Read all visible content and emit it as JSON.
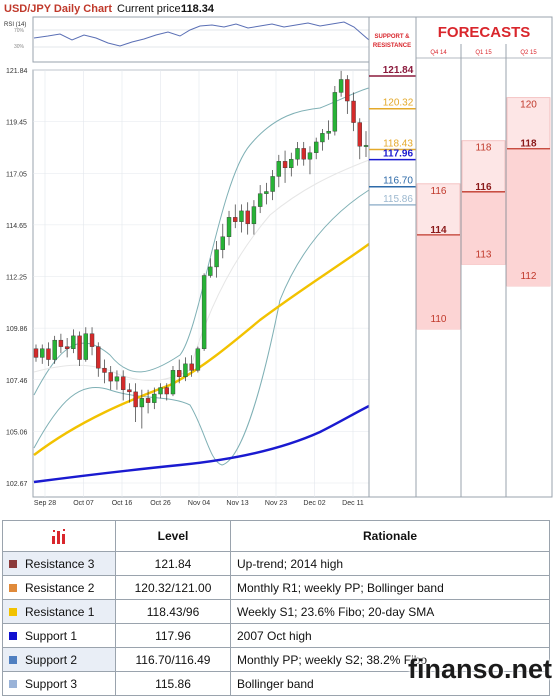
{
  "header": {
    "title": "USD/JPY Daily Chart",
    "price_label": "Current price:",
    "price_value": "118.34"
  },
  "rsi": {
    "label": "RSI (14)",
    "levels": [
      "70%",
      "30%"
    ]
  },
  "chart_data": {
    "type": "candlestick",
    "ylim": [
      102.67,
      121.84
    ],
    "y_ticks": [
      "121.84",
      "119.45",
      "117.05",
      "114.65",
      "112.25",
      "109.86",
      "107.46",
      "105.06",
      "102.67"
    ],
    "x_ticks": [
      "Sep 28",
      "Oct 07",
      "Oct 16",
      "Oct 26",
      "Nov 04",
      "Nov 13",
      "Nov 23",
      "Dec 02",
      "Dec 11"
    ],
    "candles": [
      [
        108.9,
        108.5,
        109.1,
        108.3
      ],
      [
        108.5,
        108.9,
        109.1,
        108.2
      ],
      [
        108.9,
        108.4,
        109.2,
        108.1
      ],
      [
        108.4,
        109.3,
        109.5,
        108.2
      ],
      [
        109.3,
        109.0,
        109.6,
        108.7
      ],
      [
        109.0,
        108.9,
        109.4,
        108.5
      ],
      [
        108.9,
        109.5,
        109.8,
        108.7
      ],
      [
        109.5,
        108.4,
        109.7,
        108.1
      ],
      [
        108.4,
        109.6,
        109.9,
        108.3
      ],
      [
        109.6,
        109.0,
        109.9,
        108.6
      ],
      [
        109.0,
        108.0,
        109.2,
        107.6
      ],
      [
        108.0,
        107.8,
        108.4,
        107.3
      ],
      [
        107.8,
        107.4,
        108.1,
        107.0
      ],
      [
        107.4,
        107.6,
        107.9,
        107.0
      ],
      [
        107.6,
        107.0,
        107.9,
        106.5
      ],
      [
        107.0,
        106.9,
        107.3,
        106.4
      ],
      [
        106.9,
        106.2,
        107.3,
        105.5
      ],
      [
        106.2,
        106.6,
        107.0,
        105.2
      ],
      [
        106.6,
        106.4,
        107.0,
        105.9
      ],
      [
        106.4,
        106.8,
        107.1,
        106.1
      ],
      [
        106.8,
        107.1,
        107.3,
        106.6
      ],
      [
        107.1,
        106.8,
        107.3,
        106.5
      ],
      [
        106.8,
        107.9,
        108.1,
        106.7
      ],
      [
        107.9,
        107.6,
        108.4,
        107.3
      ],
      [
        107.6,
        108.2,
        108.5,
        107.4
      ],
      [
        108.2,
        107.9,
        108.6,
        107.6
      ],
      [
        107.9,
        108.9,
        109.0,
        107.8
      ],
      [
        108.9,
        112.3,
        112.4,
        108.8
      ],
      [
        112.3,
        112.7,
        113.1,
        112.2
      ],
      [
        112.7,
        113.5,
        113.9,
        112.2
      ],
      [
        113.5,
        114.1,
        114.7,
        113.1
      ],
      [
        114.1,
        115.0,
        115.3,
        113.7
      ],
      [
        115.0,
        114.8,
        115.6,
        114.5
      ],
      [
        114.8,
        115.3,
        115.6,
        114.3
      ],
      [
        115.3,
        114.7,
        115.7,
        114.2
      ],
      [
        114.7,
        115.5,
        115.8,
        114.2
      ],
      [
        115.5,
        116.1,
        116.5,
        115.2
      ],
      [
        116.1,
        116.2,
        116.6,
        115.6
      ],
      [
        116.2,
        116.9,
        117.2,
        115.8
      ],
      [
        116.9,
        117.6,
        117.9,
        116.4
      ],
      [
        117.6,
        117.3,
        118.1,
        116.6
      ],
      [
        117.3,
        117.7,
        118.0,
        116.9
      ],
      [
        117.7,
        118.2,
        118.5,
        117.4
      ],
      [
        118.2,
        117.7,
        118.5,
        117.4
      ],
      [
        117.7,
        118.0,
        118.3,
        117.0
      ],
      [
        118.0,
        118.5,
        118.7,
        117.7
      ],
      [
        118.5,
        118.9,
        119.1,
        118.1
      ],
      [
        118.9,
        119.0,
        119.5,
        118.6
      ],
      [
        119.0,
        120.8,
        121.1,
        118.8
      ],
      [
        120.8,
        121.4,
        121.8,
        120.6
      ],
      [
        121.4,
        120.4,
        121.6,
        119.8
      ],
      [
        120.4,
        119.4,
        120.8,
        119.0
      ],
      [
        119.4,
        118.3,
        119.6,
        117.7
      ],
      [
        118.3,
        118.34,
        119.0,
        117.8
      ]
    ],
    "indicators": [
      "Bollinger band (upper)",
      "Bollinger band (lower)",
      "20-day SMA",
      "50-day SMA",
      "100-day SMA"
    ]
  },
  "support_resistance": {
    "header": [
      "SUPPORT &",
      "RESISTANCE"
    ],
    "levels": [
      {
        "value": "121.84",
        "color": "#8b1a3c",
        "y": 121.84
      },
      {
        "value": "120.32",
        "color": "#e4a92a",
        "y": 120.32
      },
      {
        "value": "118.43",
        "color": "#e4a92a",
        "y": 118.43
      },
      {
        "value": "117.96",
        "color": "#1a1ad0",
        "y": 117.96
      },
      {
        "value": "116.70",
        "color": "#2d6aa8",
        "y": 116.7
      },
      {
        "value": "115.86",
        "color": "#9cb8cf",
        "y": 115.86
      }
    ]
  },
  "forecasts": {
    "title": "FORECASTS",
    "columns": [
      {
        "label": "Q4 14",
        "high": "116",
        "mid": "114",
        "low": "110",
        "high_y": 116,
        "mid_y": 114,
        "low_y": 110,
        "band_top": 116,
        "band_bottom": 110
      },
      {
        "label": "Q1 15",
        "high": "118",
        "mid": "116",
        "low": "113",
        "high_y": 118,
        "mid_y": 116,
        "low_y": 113,
        "band_top": 118,
        "band_bottom": 113
      },
      {
        "label": "Q2 15",
        "high": "120",
        "mid": "118",
        "low": "112",
        "high_y": 120,
        "mid_y": 118,
        "low_y": 112,
        "band_top": 120,
        "band_bottom": 112
      }
    ]
  },
  "table": {
    "headers": {
      "level": "Level",
      "rationale": "Rationale"
    },
    "rows": [
      {
        "name": "Resistance 3",
        "color": "#8b3a3a",
        "level": "121.84",
        "rationale": "Up-trend; 2014 high"
      },
      {
        "name": "Resistance 2",
        "color": "#e08a3a",
        "level": "120.32/121.00",
        "rationale": "Monthly R1; weekly PP; Bollinger band"
      },
      {
        "name": "Resistance 1",
        "color": "#f2c200",
        "level": "118.43/96",
        "rationale": "Weekly S1; 23.6% Fibo; 20-day SMA"
      },
      {
        "name": "Support 1",
        "color": "#1010d0",
        "level": "117.96",
        "rationale": "2007 Oct high"
      },
      {
        "name": "Support 2",
        "color": "#4f7fc0",
        "level": "116.70/116.49",
        "rationale": "Monthly PP; weekly S2; 38.2% Fibo"
      },
      {
        "name": "Support 3",
        "color": "#9ab3d8",
        "level": "115.86",
        "rationale": "Bollinger band"
      }
    ]
  },
  "watermark": "finanso.net"
}
